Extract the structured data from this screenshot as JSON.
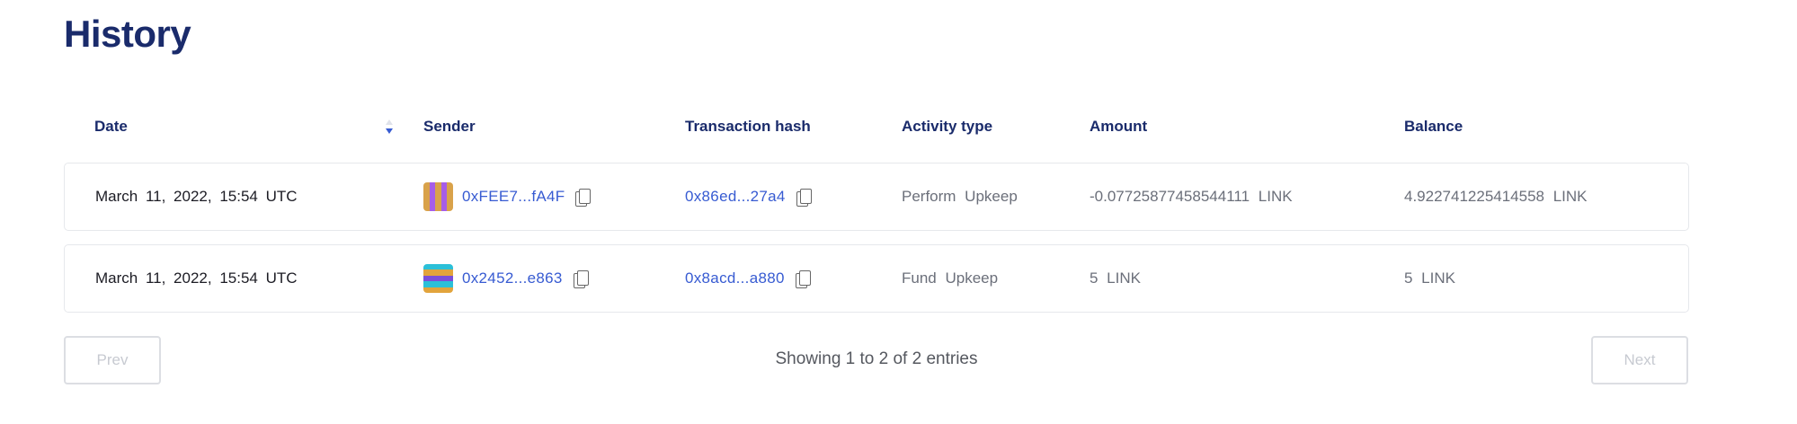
{
  "page_title": "History",
  "table": {
    "columns": [
      "Date",
      "Sender",
      "Transaction hash",
      "Activity type",
      "Amount",
      "Balance"
    ],
    "sort": {
      "column": "Date",
      "direction": "descending"
    },
    "rows": [
      {
        "date": "March 11, 2022, 15:54 UTC",
        "sender": "0xFEE7...fA4F",
        "sender_avatar_colors": [
          "#d9a24a",
          "#a65de8"
        ],
        "tx_hash": "0x86ed...27a4",
        "activity": "Perform Upkeep",
        "amount": "-0.07725877458544111 LINK",
        "balance": "4.922741225414558 LINK"
      },
      {
        "date": "March 11, 2022, 15:54 UTC",
        "sender": "0x2452...e863",
        "sender_avatar_colors": [
          "#e2a43c",
          "#2bc0d8",
          "#7a4fd9"
        ],
        "tx_hash": "0x8acd...a880",
        "activity": "Fund Upkeep",
        "amount": "5 LINK",
        "balance": "5 LINK"
      }
    ]
  },
  "pagination": {
    "prev_label": "Prev",
    "next_label": "Next",
    "status": "Showing 1 to 2 of 2 entries"
  },
  "colors": {
    "title": "#1a2b6b",
    "link": "#375bd2",
    "sort_active": "#375bd2"
  }
}
